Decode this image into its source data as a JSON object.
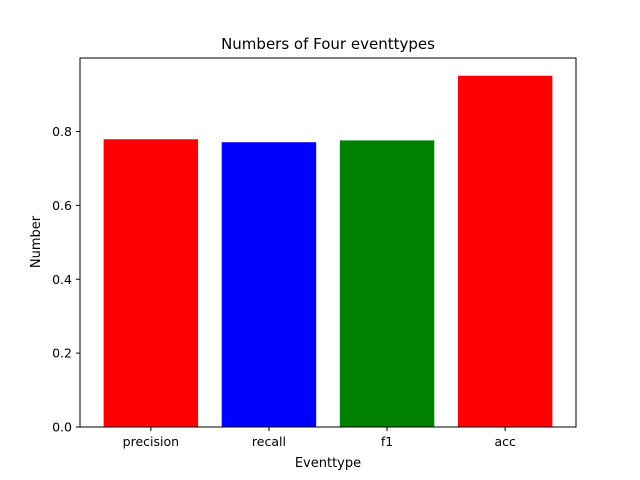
{
  "chart_data": {
    "type": "bar",
    "title": "Numbers of Four eventtypes",
    "xlabel": "Eventtype",
    "ylabel": "Number",
    "categories": [
      "precision",
      "recall",
      "f1",
      "acc"
    ],
    "values": [
      0.779,
      0.771,
      0.776,
      0.951
    ],
    "colors": [
      "#ff0000",
      "#0000ff",
      "#008000",
      "#ff0000"
    ],
    "ylim": [
      0,
      0.999
    ],
    "yticks": [
      0.0,
      0.2,
      0.4,
      0.6,
      0.8
    ],
    "ytick_labels": [
      "0.0",
      "0.2",
      "0.4",
      "0.6",
      "0.8"
    ],
    "grid": false
  }
}
